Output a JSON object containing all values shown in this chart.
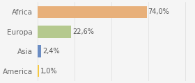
{
  "categories": [
    "America",
    "Asia",
    "Europa",
    "Africa"
  ],
  "values": [
    1.0,
    2.4,
    22.6,
    74.0
  ],
  "bar_colors": [
    "#f5c842",
    "#6b8dc4",
    "#b5c98e",
    "#e8b07a"
  ],
  "labels": [
    "1,0%",
    "2,4%",
    "22,6%",
    "74,0%"
  ],
  "xlim": [
    0,
    105
  ],
  "background_color": "#f5f5f5",
  "label_fontsize": 7,
  "tick_fontsize": 7.5,
  "bar_height": 0.62
}
